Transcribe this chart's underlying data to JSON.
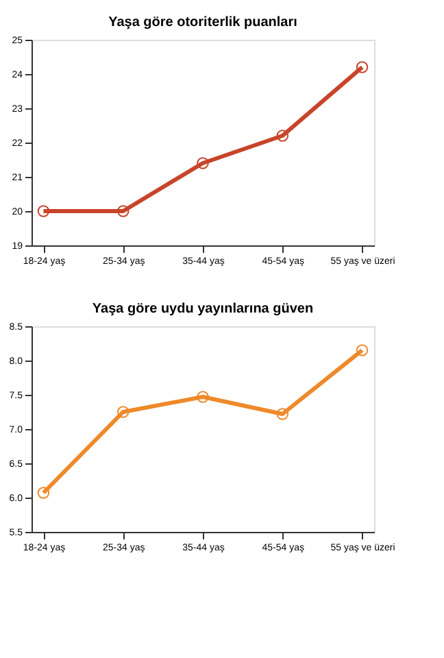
{
  "chart_data": [
    {
      "type": "line",
      "title": "Yaşa göre otoriterlik puanları",
      "categories": [
        "18-24 yaş",
        "25-34 yaş",
        "35-44 yaş",
        "45-54 yaş",
        "55 yaş ve üzeri"
      ],
      "series": [
        {
          "color": "#c8442a",
          "values": [
            20.0,
            20.0,
            21.4,
            22.2,
            24.2
          ]
        }
      ],
      "ylim": [
        19,
        25
      ],
      "yticks": [
        19,
        20,
        21,
        22,
        23,
        24,
        25
      ],
      "grid": false,
      "marker": "circle",
      "line_style": "solid"
    },
    {
      "type": "line",
      "title": "Yaşa göre uydu yayınlarına güven",
      "categories": [
        "18-24 yaş",
        "25-34 yaş",
        "35-44 yaş",
        "45-54 yaş",
        "55 yaş ve üzeri"
      ],
      "series": [
        {
          "color": "#ee8a2a",
          "values": [
            6.07,
            7.25,
            7.47,
            7.22,
            8.15
          ]
        }
      ],
      "ylim": [
        5.5,
        8.5
      ],
      "yticks": [
        5.5,
        {
          "value": 6,
          "label": "6.0"
        },
        6.5,
        {
          "value": 7,
          "label": "7.0"
        },
        7.5,
        {
          "value": 8,
          "label": "8.0"
        },
        8.5
      ],
      "grid": false,
      "marker": "circle",
      "line_style": "solid"
    }
  ]
}
